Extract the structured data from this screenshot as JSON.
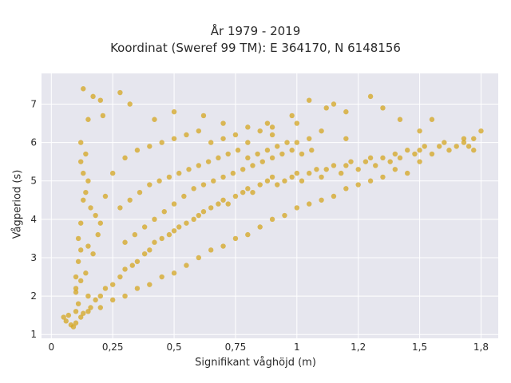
{
  "chart_data": {
    "type": "scatter",
    "title": "År 1979 - 2019",
    "subtitle": "Koordinat (Sweref 99 TM): E 364170, N 6148156",
    "xlabel": "Signifikant våghöjd (m)",
    "ylabel": "Vågperiod (s)",
    "xlim": [
      -0.04,
      1.82
    ],
    "ylim": [
      0.9,
      7.8
    ],
    "grid": true,
    "x_ticks": [
      {
        "value": 0,
        "label": "0"
      },
      {
        "value": 0.25,
        "label": "0,25"
      },
      {
        "value": 0.5,
        "label": "0,5"
      },
      {
        "value": 0.75,
        "label": "0,75"
      },
      {
        "value": 1,
        "label": "1"
      },
      {
        "value": 1.25,
        "label": "1,2"
      },
      {
        "value": 1.5,
        "label": "1,5"
      },
      {
        "value": 1.75,
        "label": "1,8"
      }
    ],
    "y_ticks": [
      {
        "value": 1,
        "label": "1"
      },
      {
        "value": 2,
        "label": "2"
      },
      {
        "value": 3,
        "label": "3"
      },
      {
        "value": 4,
        "label": "4"
      },
      {
        "value": 5,
        "label": "5"
      },
      {
        "value": 6,
        "label": "6"
      },
      {
        "value": 7,
        "label": "7"
      }
    ],
    "series": [
      {
        "color": "#d4a520",
        "points": [
          [
            0.05,
            1.45
          ],
          [
            0.06,
            1.35
          ],
          [
            0.07,
            1.5
          ],
          [
            0.08,
            1.25
          ],
          [
            0.09,
            1.2
          ],
          [
            0.1,
            1.3
          ],
          [
            0.1,
            1.6
          ],
          [
            0.11,
            1.8
          ],
          [
            0.12,
            1.45
          ],
          [
            0.13,
            1.55
          ],
          [
            0.1,
            2.1
          ],
          [
            0.1,
            2.5
          ],
          [
            0.11,
            2.9
          ],
          [
            0.12,
            3.2
          ],
          [
            0.1,
            2.2
          ],
          [
            0.12,
            2.4
          ],
          [
            0.14,
            2.6
          ],
          [
            0.15,
            2.0
          ],
          [
            0.16,
            1.7
          ],
          [
            0.18,
            1.9
          ],
          [
            0.2,
            2.0
          ],
          [
            0.22,
            2.2
          ],
          [
            0.25,
            2.3
          ],
          [
            0.28,
            2.5
          ],
          [
            0.3,
            2.7
          ],
          [
            0.33,
            2.8
          ],
          [
            0.35,
            2.9
          ],
          [
            0.38,
            3.1
          ],
          [
            0.4,
            3.2
          ],
          [
            0.42,
            3.4
          ],
          [
            0.45,
            3.5
          ],
          [
            0.48,
            3.6
          ],
          [
            0.5,
            3.7
          ],
          [
            0.52,
            3.8
          ],
          [
            0.55,
            3.9
          ],
          [
            0.58,
            4.0
          ],
          [
            0.6,
            4.1
          ],
          [
            0.62,
            4.2
          ],
          [
            0.65,
            4.3
          ],
          [
            0.68,
            4.4
          ],
          [
            0.7,
            4.5
          ],
          [
            0.72,
            4.4
          ],
          [
            0.75,
            4.6
          ],
          [
            0.78,
            4.7
          ],
          [
            0.8,
            4.8
          ],
          [
            0.82,
            4.7
          ],
          [
            0.85,
            4.9
          ],
          [
            0.88,
            5.0
          ],
          [
            0.9,
            5.1
          ],
          [
            0.92,
            4.9
          ],
          [
            0.95,
            5.0
          ],
          [
            0.98,
            5.1
          ],
          [
            1.0,
            5.2
          ],
          [
            1.02,
            5.0
          ],
          [
            1.05,
            5.2
          ],
          [
            1.08,
            5.3
          ],
          [
            1.1,
            5.1
          ],
          [
            1.12,
            5.3
          ],
          [
            1.15,
            5.4
          ],
          [
            1.18,
            5.2
          ],
          [
            1.2,
            5.4
          ],
          [
            1.22,
            5.5
          ],
          [
            1.25,
            5.3
          ],
          [
            1.28,
            5.5
          ],
          [
            1.3,
            5.6
          ],
          [
            1.32,
            5.4
          ],
          [
            1.35,
            5.6
          ],
          [
            1.38,
            5.5
          ],
          [
            1.4,
            5.7
          ],
          [
            1.42,
            5.6
          ],
          [
            1.45,
            5.8
          ],
          [
            1.48,
            5.7
          ],
          [
            1.5,
            5.8
          ],
          [
            1.52,
            5.9
          ],
          [
            1.55,
            5.7
          ],
          [
            1.58,
            5.9
          ],
          [
            1.6,
            6.0
          ],
          [
            1.62,
            5.8
          ],
          [
            1.65,
            5.9
          ],
          [
            1.68,
            6.0
          ],
          [
            1.7,
            5.9
          ],
          [
            1.72,
            6.1
          ],
          [
            1.75,
            6.3
          ],
          [
            1.5,
            5.5
          ],
          [
            1.45,
            5.2
          ],
          [
            1.4,
            5.3
          ],
          [
            1.35,
            5.1
          ],
          [
            1.3,
            5.0
          ],
          [
            1.25,
            4.9
          ],
          [
            1.2,
            4.8
          ],
          [
            1.15,
            4.6
          ],
          [
            1.1,
            4.5
          ],
          [
            1.05,
            4.4
          ],
          [
            1.0,
            4.3
          ],
          [
            0.95,
            4.1
          ],
          [
            0.9,
            4.0
          ],
          [
            0.85,
            3.8
          ],
          [
            0.8,
            3.6
          ],
          [
            0.75,
            3.5
          ],
          [
            0.7,
            3.3
          ],
          [
            0.65,
            3.2
          ],
          [
            0.6,
            3.0
          ],
          [
            0.55,
            2.8
          ],
          [
            0.5,
            2.6
          ],
          [
            0.45,
            2.5
          ],
          [
            0.4,
            2.3
          ],
          [
            0.35,
            2.2
          ],
          [
            0.3,
            2.0
          ],
          [
            0.25,
            1.9
          ],
          [
            0.2,
            1.7
          ],
          [
            0.15,
            1.6
          ],
          [
            0.13,
            7.4
          ],
          [
            0.17,
            7.2
          ],
          [
            0.2,
            7.1
          ],
          [
            0.28,
            7.3
          ],
          [
            0.32,
            7.0
          ],
          [
            0.21,
            6.7
          ],
          [
            0.15,
            6.6
          ],
          [
            0.42,
            6.6
          ],
          [
            0.5,
            6.8
          ],
          [
            0.62,
            6.7
          ],
          [
            0.7,
            6.5
          ],
          [
            0.8,
            6.4
          ],
          [
            0.88,
            6.5
          ],
          [
            0.98,
            6.7
          ],
          [
            1.05,
            7.1
          ],
          [
            1.12,
            6.9
          ],
          [
            1.15,
            7.0
          ],
          [
            1.2,
            6.8
          ],
          [
            1.3,
            7.2
          ],
          [
            1.35,
            6.9
          ],
          [
            1.42,
            6.6
          ],
          [
            1.5,
            6.3
          ],
          [
            1.55,
            6.6
          ],
          [
            1.68,
            6.1
          ],
          [
            1.72,
            5.8
          ],
          [
            1.2,
            6.1
          ],
          [
            1.1,
            6.3
          ],
          [
            1.0,
            6.5
          ],
          [
            0.9,
            6.2
          ],
          [
            0.12,
            6.0
          ],
          [
            0.14,
            5.7
          ],
          [
            0.12,
            5.5
          ],
          [
            0.13,
            5.2
          ],
          [
            0.15,
            5.0
          ],
          [
            0.14,
            4.7
          ],
          [
            0.13,
            4.5
          ],
          [
            0.16,
            4.3
          ],
          [
            0.18,
            4.1
          ],
          [
            0.2,
            3.9
          ],
          [
            0.12,
            3.9
          ],
          [
            0.11,
            3.5
          ],
          [
            0.15,
            3.3
          ],
          [
            0.17,
            3.1
          ],
          [
            0.19,
            3.6
          ],
          [
            0.22,
            4.6
          ],
          [
            0.25,
            5.2
          ],
          [
            0.3,
            5.6
          ],
          [
            0.35,
            5.8
          ],
          [
            0.4,
            5.9
          ],
          [
            0.45,
            6.0
          ],
          [
            0.5,
            6.1
          ],
          [
            0.55,
            6.2
          ],
          [
            0.6,
            6.3
          ],
          [
            0.65,
            6.0
          ],
          [
            0.7,
            6.1
          ],
          [
            0.75,
            6.2
          ],
          [
            0.8,
            6.0
          ],
          [
            0.85,
            6.3
          ],
          [
            0.9,
            6.4
          ],
          [
            0.28,
            4.3
          ],
          [
            0.32,
            4.5
          ],
          [
            0.36,
            4.7
          ],
          [
            0.4,
            4.9
          ],
          [
            0.44,
            5.0
          ],
          [
            0.48,
            5.1
          ],
          [
            0.52,
            5.2
          ],
          [
            0.56,
            5.3
          ],
          [
            0.6,
            5.4
          ],
          [
            0.64,
            5.5
          ],
          [
            0.68,
            5.6
          ],
          [
            0.72,
            5.7
          ],
          [
            0.76,
            5.8
          ],
          [
            0.8,
            5.6
          ],
          [
            0.84,
            5.7
          ],
          [
            0.88,
            5.8
          ],
          [
            0.92,
            5.9
          ],
          [
            0.96,
            6.0
          ],
          [
            1.0,
            6.0
          ],
          [
            1.05,
            6.1
          ],
          [
            0.3,
            3.4
          ],
          [
            0.34,
            3.6
          ],
          [
            0.38,
            3.8
          ],
          [
            0.42,
            4.0
          ],
          [
            0.46,
            4.2
          ],
          [
            0.5,
            4.4
          ],
          [
            0.54,
            4.6
          ],
          [
            0.58,
            4.8
          ],
          [
            0.62,
            4.9
          ],
          [
            0.66,
            5.0
          ],
          [
            0.7,
            5.1
          ],
          [
            0.74,
            5.2
          ],
          [
            0.78,
            5.3
          ],
          [
            0.82,
            5.4
          ],
          [
            0.86,
            5.5
          ],
          [
            0.9,
            5.6
          ],
          [
            0.94,
            5.7
          ],
          [
            0.98,
            5.8
          ],
          [
            1.02,
            5.7
          ],
          [
            1.06,
            5.8
          ]
        ]
      }
    ]
  }
}
